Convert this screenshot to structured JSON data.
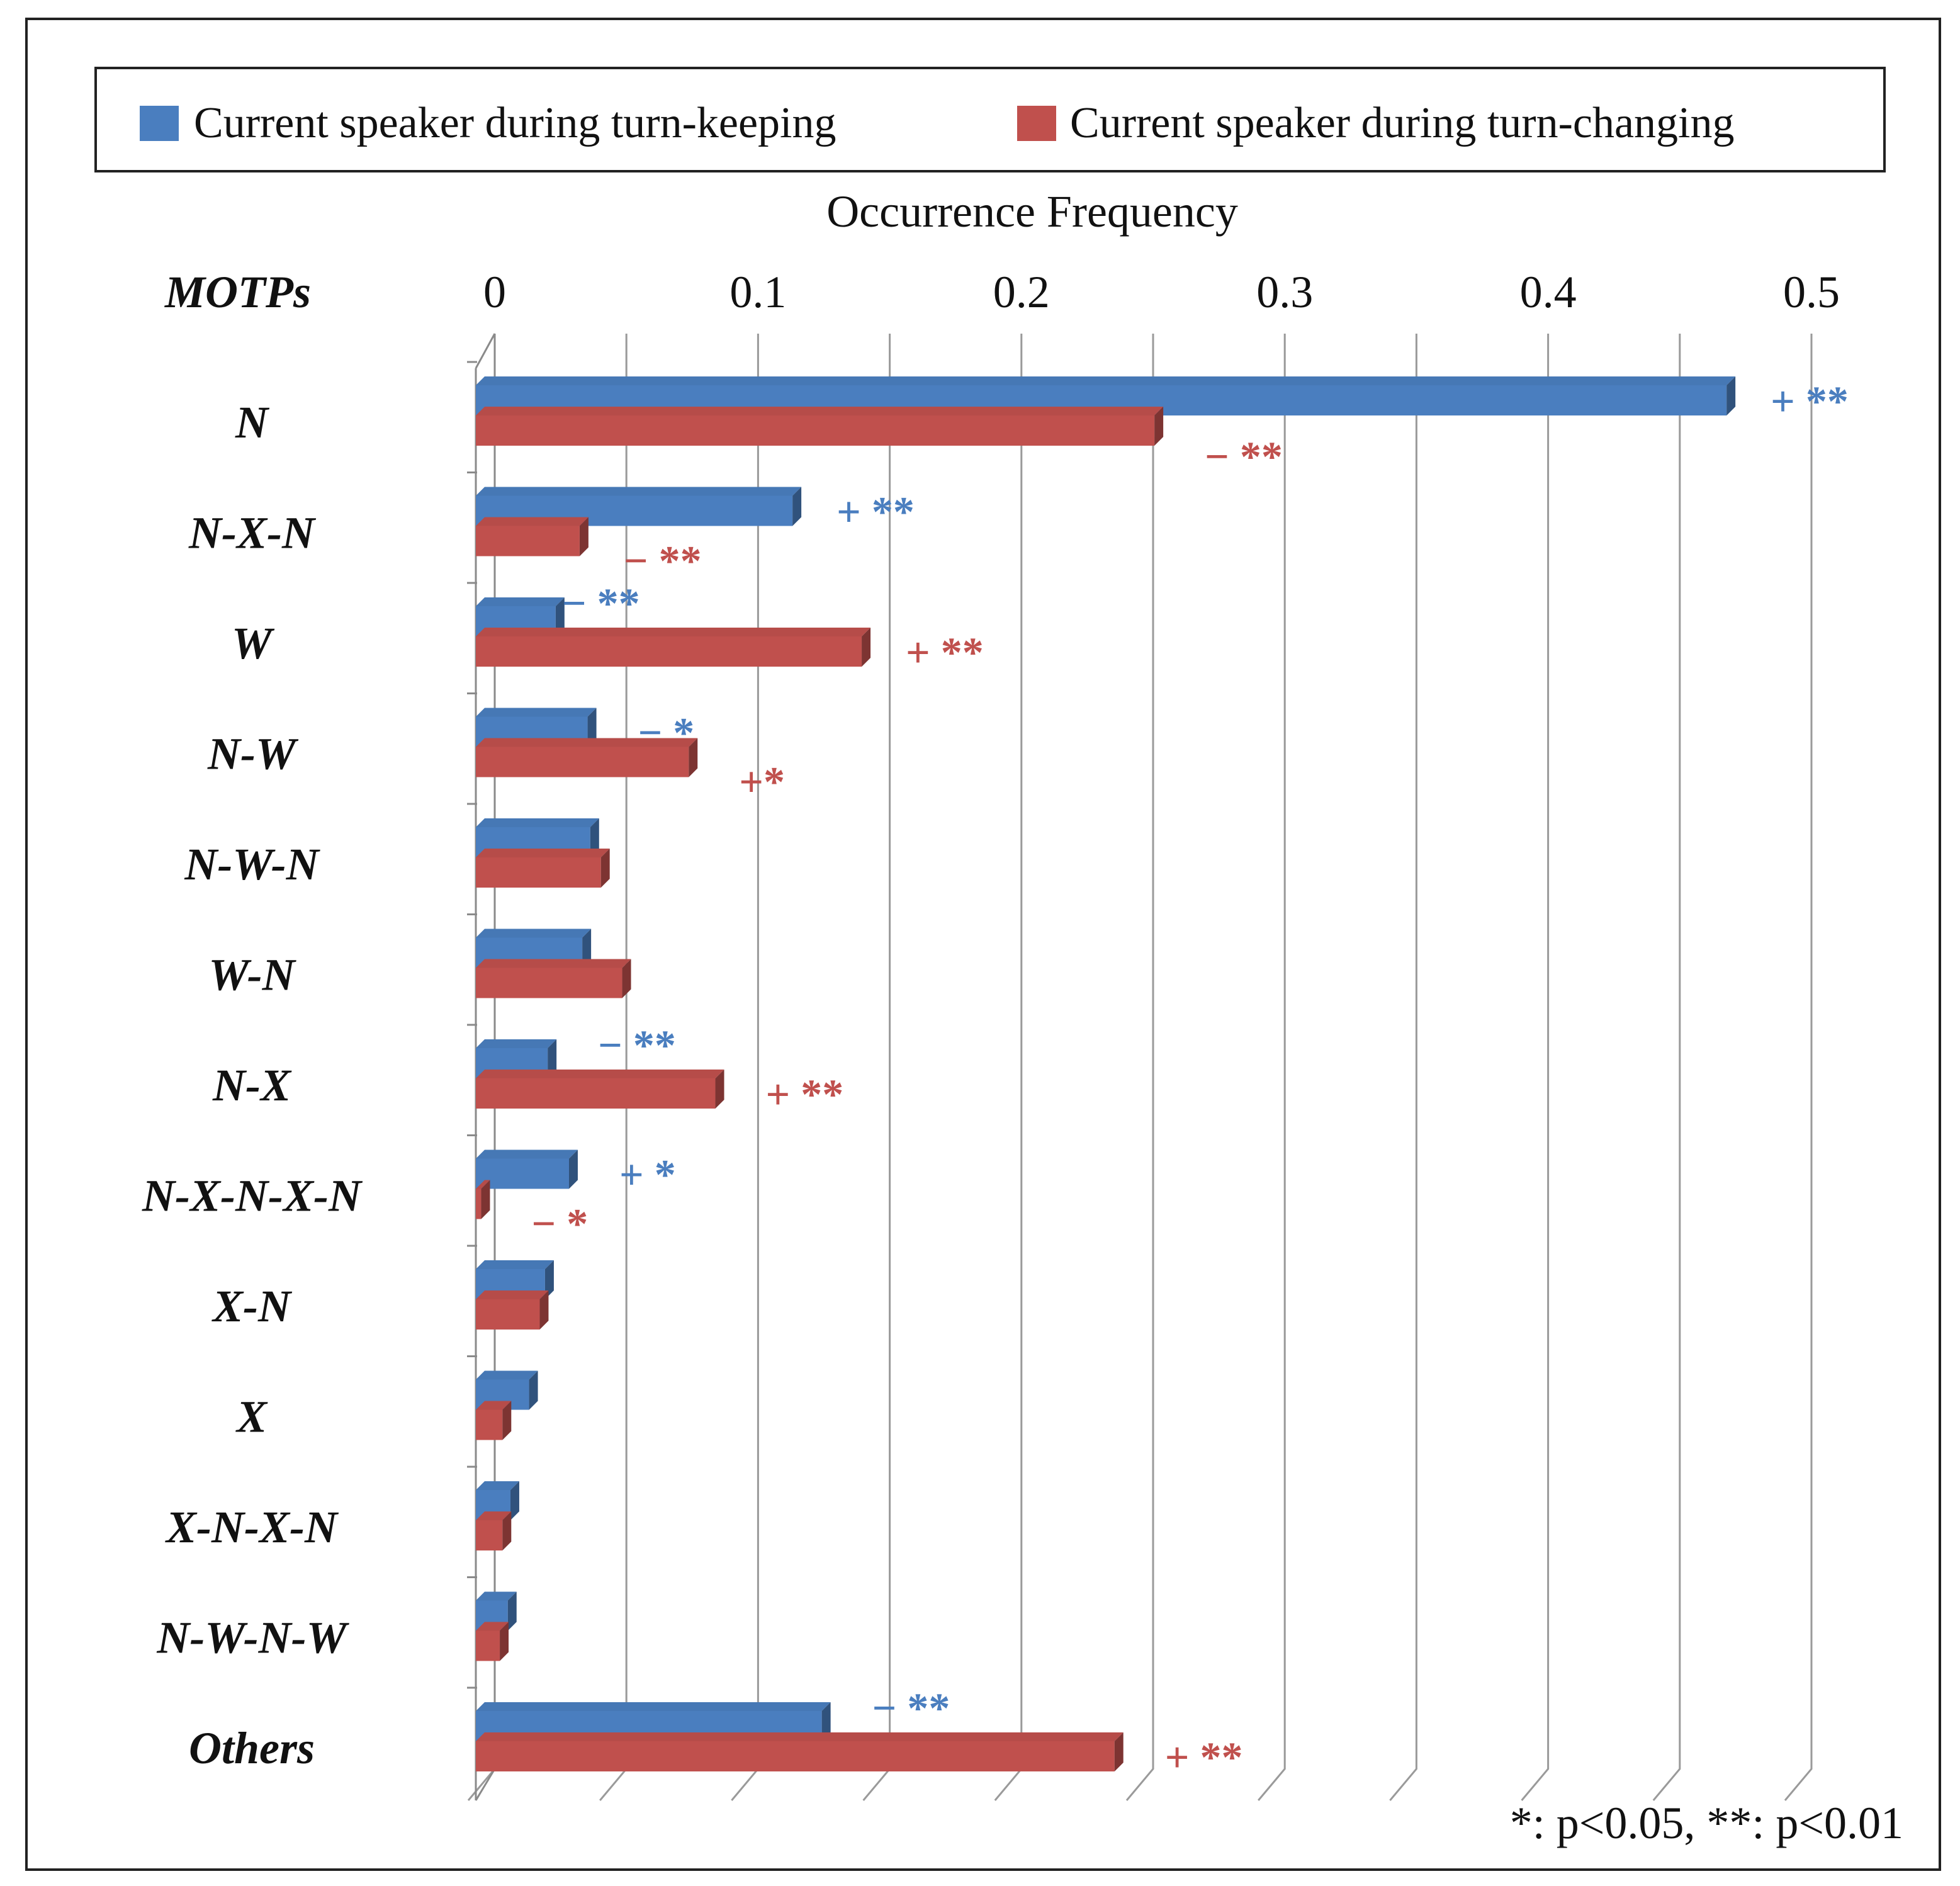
{
  "chart_data": {
    "type": "bar",
    "orientation": "horizontal",
    "title": "",
    "xlabel": "Occurrence Frequency",
    "ylabel": "MOTPs",
    "xlim": [
      0,
      0.5
    ],
    "xticks": [
      "0",
      "0.1",
      "0.2",
      "0.3",
      "0.4",
      "0.5"
    ],
    "grid": true,
    "legend_position": "top",
    "categories": [
      "N",
      "N-X-N",
      "W",
      "N-W",
      "N-W-N",
      "W-N",
      "N-X",
      "N-X-N-X-N",
      "X-N",
      "X",
      "X-N-X-N",
      "N-W-N-W",
      "Others"
    ],
    "series": [
      {
        "name": "Current speaker during turn-keeping",
        "color": "#4a7ebf",
        "values": [
          0.47,
          0.119,
          0.03,
          0.042,
          0.043,
          0.04,
          0.027,
          0.035,
          0.026,
          0.02,
          0.013,
          0.012,
          0.13
        ],
        "annotations": [
          "+ **",
          "+ **",
          "− **",
          "− *",
          "",
          "",
          "− **",
          "+ *",
          "",
          "",
          "",
          "",
          "− **"
        ]
      },
      {
        "name": "Current speaker during turn-changing",
        "color": "#c0504d",
        "values": [
          0.255,
          0.039,
          0.145,
          0.08,
          0.047,
          0.055,
          0.09,
          0.002,
          0.024,
          0.01,
          0.01,
          0.009,
          0.24
        ],
        "annotations": [
          "− **",
          "− **",
          "+ **",
          "+*",
          "",
          "",
          "+ **",
          "− *",
          "",
          "",
          "",
          "",
          "+ **"
        ]
      }
    ],
    "footnote": "*: p<0.05, **: p<0.01"
  }
}
